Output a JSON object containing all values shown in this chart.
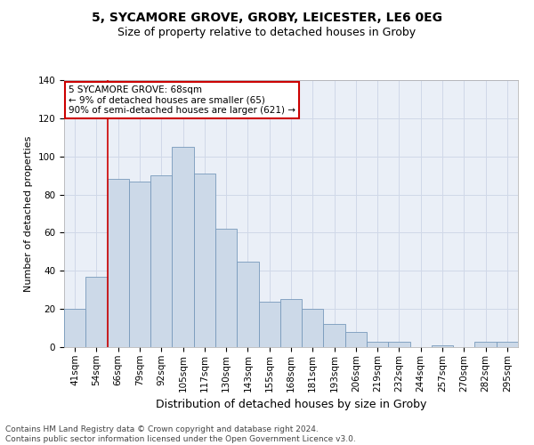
{
  "title1": "5, SYCAMORE GROVE, GROBY, LEICESTER, LE6 0EG",
  "title2": "Size of property relative to detached houses in Groby",
  "xlabel": "Distribution of detached houses by size in Groby",
  "ylabel": "Number of detached properties",
  "categories": [
    "41sqm",
    "54sqm",
    "66sqm",
    "79sqm",
    "92sqm",
    "105sqm",
    "117sqm",
    "130sqm",
    "143sqm",
    "155sqm",
    "168sqm",
    "181sqm",
    "193sqm",
    "206sqm",
    "219sqm",
    "232sqm",
    "244sqm",
    "257sqm",
    "270sqm",
    "282sqm",
    "295sqm"
  ],
  "values": [
    20,
    37,
    88,
    87,
    90,
    105,
    91,
    62,
    45,
    24,
    25,
    20,
    12,
    8,
    3,
    3,
    0,
    1,
    0,
    3,
    3
  ],
  "bar_color": "#ccd9e8",
  "bar_edge_color": "#7799bb",
  "grid_color": "#d0d8e8",
  "annotation_box_text": "5 SYCAMORE GROVE: 68sqm\n← 9% of detached houses are smaller (65)\n90% of semi-detached houses are larger (621) →",
  "annotation_box_color": "#ffffff",
  "annotation_line_color": "#cc0000",
  "ylim": [
    0,
    140
  ],
  "yticks": [
    0,
    20,
    40,
    60,
    80,
    100,
    120,
    140
  ],
  "bg_color": "#eaeff7",
  "footer": "Contains HM Land Registry data © Crown copyright and database right 2024.\nContains public sector information licensed under the Open Government Licence v3.0.",
  "title1_fontsize": 10,
  "title2_fontsize": 9,
  "xlabel_fontsize": 9,
  "ylabel_fontsize": 8,
  "tick_fontsize": 7.5,
  "footer_fontsize": 6.5,
  "ann_fontsize": 7.5
}
